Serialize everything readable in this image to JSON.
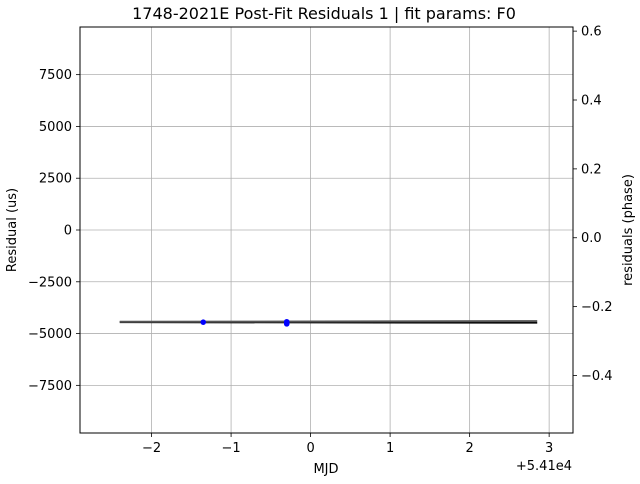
{
  "chart_data": {
    "type": "line",
    "title": "1748-2021E Post-Fit Residuals 1 | fit params: F0",
    "xlabel": "MJD",
    "ylabel": "Residual (us)",
    "y2label": "residuals (phase)",
    "x_offset_label": "+5.41e4",
    "xlim": [
      -2.9,
      3.3
    ],
    "ylim": [
      9800,
      -9800
    ],
    "y2lim": [
      0.612,
      -0.567
    ],
    "x_ticks": [
      -2,
      -1,
      0,
      1,
      2,
      3
    ],
    "x_tick_labels": [
      "−2",
      "−1",
      "0",
      "1",
      "2",
      "3"
    ],
    "y_ticks": [
      -7500,
      -5000,
      -2500,
      0,
      2500,
      5000,
      7500
    ],
    "y_tick_labels": [
      "−7500",
      "−5000",
      "−2500",
      "0",
      "2500",
      "5000",
      "7500"
    ],
    "y2_ticks": [
      -0.4,
      -0.2,
      0.0,
      0.2,
      0.4,
      0.6
    ],
    "y2_tick_labels": [
      "−0.4",
      "−0.2",
      "0.0",
      "0.2",
      "0.4",
      "0.6"
    ],
    "grid": true,
    "series": [
      {
        "kind": "line",
        "color": "#000000",
        "x": [
          -2.4,
          2.85
        ],
        "y": [
          -4450,
          -4470
        ]
      },
      {
        "kind": "line",
        "color": "#555555",
        "x": [
          -2.4,
          2.85
        ],
        "y": [
          -4430,
          -4400
        ]
      },
      {
        "kind": "points",
        "color": "#0000ff",
        "x": [
          -1.35,
          -0.3,
          -0.3,
          -0.3
        ],
        "y": [
          -4450,
          -4480,
          -4530,
          -4430
        ]
      }
    ]
  }
}
